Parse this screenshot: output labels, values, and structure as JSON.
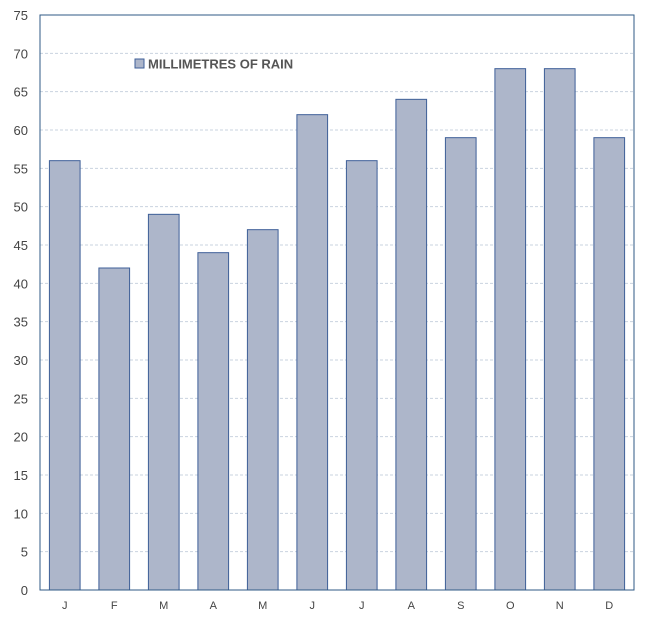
{
  "chart_data": {
    "type": "bar",
    "categories": [
      "J",
      "F",
      "M",
      "A",
      "M",
      "J",
      "J",
      "A",
      "S",
      "O",
      "N",
      "D"
    ],
    "series": [
      {
        "name": "MILLIMETRES OF RAIN",
        "values": [
          56,
          42,
          49,
          44,
          47,
          62,
          56,
          64,
          59,
          68,
          68,
          59
        ]
      }
    ],
    "ylim": [
      0,
      75
    ],
    "yticks": [
      0,
      5,
      10,
      15,
      20,
      25,
      30,
      35,
      40,
      45,
      50,
      55,
      60,
      65,
      70,
      75
    ],
    "grid": true,
    "legend_position": "top-left",
    "colors": {
      "bar_fill": "#adb6ca",
      "bar_stroke": "#3e5f98",
      "axis": "#2f5a86",
      "grid": "#c9d3df",
      "text": "#444444"
    }
  }
}
